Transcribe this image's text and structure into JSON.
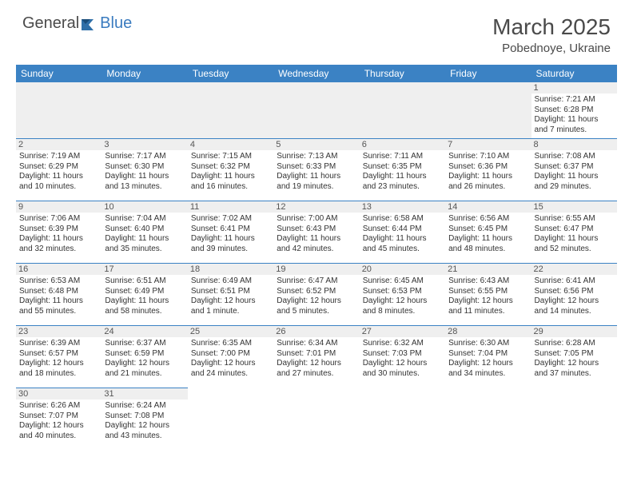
{
  "logo": {
    "general": "General",
    "blue": "Blue"
  },
  "title": "March 2025",
  "location": "Pobednoye, Ukraine",
  "colors": {
    "header_bg": "#3b82c4",
    "header_text": "#ffffff",
    "blank_bg": "#efefef",
    "border": "#3b82c4",
    "logo_blue": "#3a7bbf",
    "logo_gray": "#4a4a4a"
  },
  "columns": [
    "Sunday",
    "Monday",
    "Tuesday",
    "Wednesday",
    "Thursday",
    "Friday",
    "Saturday"
  ],
  "weeks": [
    [
      null,
      null,
      null,
      null,
      null,
      null,
      {
        "n": "1",
        "sunrise": "Sunrise: 7:21 AM",
        "sunset": "Sunset: 6:28 PM",
        "day1": "Daylight: 11 hours",
        "day2": "and 7 minutes."
      }
    ],
    [
      {
        "n": "2",
        "sunrise": "Sunrise: 7:19 AM",
        "sunset": "Sunset: 6:29 PM",
        "day1": "Daylight: 11 hours",
        "day2": "and 10 minutes."
      },
      {
        "n": "3",
        "sunrise": "Sunrise: 7:17 AM",
        "sunset": "Sunset: 6:30 PM",
        "day1": "Daylight: 11 hours",
        "day2": "and 13 minutes."
      },
      {
        "n": "4",
        "sunrise": "Sunrise: 7:15 AM",
        "sunset": "Sunset: 6:32 PM",
        "day1": "Daylight: 11 hours",
        "day2": "and 16 minutes."
      },
      {
        "n": "5",
        "sunrise": "Sunrise: 7:13 AM",
        "sunset": "Sunset: 6:33 PM",
        "day1": "Daylight: 11 hours",
        "day2": "and 19 minutes."
      },
      {
        "n": "6",
        "sunrise": "Sunrise: 7:11 AM",
        "sunset": "Sunset: 6:35 PM",
        "day1": "Daylight: 11 hours",
        "day2": "and 23 minutes."
      },
      {
        "n": "7",
        "sunrise": "Sunrise: 7:10 AM",
        "sunset": "Sunset: 6:36 PM",
        "day1": "Daylight: 11 hours",
        "day2": "and 26 minutes."
      },
      {
        "n": "8",
        "sunrise": "Sunrise: 7:08 AM",
        "sunset": "Sunset: 6:37 PM",
        "day1": "Daylight: 11 hours",
        "day2": "and 29 minutes."
      }
    ],
    [
      {
        "n": "9",
        "sunrise": "Sunrise: 7:06 AM",
        "sunset": "Sunset: 6:39 PM",
        "day1": "Daylight: 11 hours",
        "day2": "and 32 minutes."
      },
      {
        "n": "10",
        "sunrise": "Sunrise: 7:04 AM",
        "sunset": "Sunset: 6:40 PM",
        "day1": "Daylight: 11 hours",
        "day2": "and 35 minutes."
      },
      {
        "n": "11",
        "sunrise": "Sunrise: 7:02 AM",
        "sunset": "Sunset: 6:41 PM",
        "day1": "Daylight: 11 hours",
        "day2": "and 39 minutes."
      },
      {
        "n": "12",
        "sunrise": "Sunrise: 7:00 AM",
        "sunset": "Sunset: 6:43 PM",
        "day1": "Daylight: 11 hours",
        "day2": "and 42 minutes."
      },
      {
        "n": "13",
        "sunrise": "Sunrise: 6:58 AM",
        "sunset": "Sunset: 6:44 PM",
        "day1": "Daylight: 11 hours",
        "day2": "and 45 minutes."
      },
      {
        "n": "14",
        "sunrise": "Sunrise: 6:56 AM",
        "sunset": "Sunset: 6:45 PM",
        "day1": "Daylight: 11 hours",
        "day2": "and 48 minutes."
      },
      {
        "n": "15",
        "sunrise": "Sunrise: 6:55 AM",
        "sunset": "Sunset: 6:47 PM",
        "day1": "Daylight: 11 hours",
        "day2": "and 52 minutes."
      }
    ],
    [
      {
        "n": "16",
        "sunrise": "Sunrise: 6:53 AM",
        "sunset": "Sunset: 6:48 PM",
        "day1": "Daylight: 11 hours",
        "day2": "and 55 minutes."
      },
      {
        "n": "17",
        "sunrise": "Sunrise: 6:51 AM",
        "sunset": "Sunset: 6:49 PM",
        "day1": "Daylight: 11 hours",
        "day2": "and 58 minutes."
      },
      {
        "n": "18",
        "sunrise": "Sunrise: 6:49 AM",
        "sunset": "Sunset: 6:51 PM",
        "day1": "Daylight: 12 hours",
        "day2": "and 1 minute."
      },
      {
        "n": "19",
        "sunrise": "Sunrise: 6:47 AM",
        "sunset": "Sunset: 6:52 PM",
        "day1": "Daylight: 12 hours",
        "day2": "and 5 minutes."
      },
      {
        "n": "20",
        "sunrise": "Sunrise: 6:45 AM",
        "sunset": "Sunset: 6:53 PM",
        "day1": "Daylight: 12 hours",
        "day2": "and 8 minutes."
      },
      {
        "n": "21",
        "sunrise": "Sunrise: 6:43 AM",
        "sunset": "Sunset: 6:55 PM",
        "day1": "Daylight: 12 hours",
        "day2": "and 11 minutes."
      },
      {
        "n": "22",
        "sunrise": "Sunrise: 6:41 AM",
        "sunset": "Sunset: 6:56 PM",
        "day1": "Daylight: 12 hours",
        "day2": "and 14 minutes."
      }
    ],
    [
      {
        "n": "23",
        "sunrise": "Sunrise: 6:39 AM",
        "sunset": "Sunset: 6:57 PM",
        "day1": "Daylight: 12 hours",
        "day2": "and 18 minutes."
      },
      {
        "n": "24",
        "sunrise": "Sunrise: 6:37 AM",
        "sunset": "Sunset: 6:59 PM",
        "day1": "Daylight: 12 hours",
        "day2": "and 21 minutes."
      },
      {
        "n": "25",
        "sunrise": "Sunrise: 6:35 AM",
        "sunset": "Sunset: 7:00 PM",
        "day1": "Daylight: 12 hours",
        "day2": "and 24 minutes."
      },
      {
        "n": "26",
        "sunrise": "Sunrise: 6:34 AM",
        "sunset": "Sunset: 7:01 PM",
        "day1": "Daylight: 12 hours",
        "day2": "and 27 minutes."
      },
      {
        "n": "27",
        "sunrise": "Sunrise: 6:32 AM",
        "sunset": "Sunset: 7:03 PM",
        "day1": "Daylight: 12 hours",
        "day2": "and 30 minutes."
      },
      {
        "n": "28",
        "sunrise": "Sunrise: 6:30 AM",
        "sunset": "Sunset: 7:04 PM",
        "day1": "Daylight: 12 hours",
        "day2": "and 34 minutes."
      },
      {
        "n": "29",
        "sunrise": "Sunrise: 6:28 AM",
        "sunset": "Sunset: 7:05 PM",
        "day1": "Daylight: 12 hours",
        "day2": "and 37 minutes."
      }
    ],
    [
      {
        "n": "30",
        "sunrise": "Sunrise: 6:26 AM",
        "sunset": "Sunset: 7:07 PM",
        "day1": "Daylight: 12 hours",
        "day2": "and 40 minutes."
      },
      {
        "n": "31",
        "sunrise": "Sunrise: 6:24 AM",
        "sunset": "Sunset: 7:08 PM",
        "day1": "Daylight: 12 hours",
        "day2": "and 43 minutes."
      },
      null,
      null,
      null,
      null,
      null
    ]
  ]
}
